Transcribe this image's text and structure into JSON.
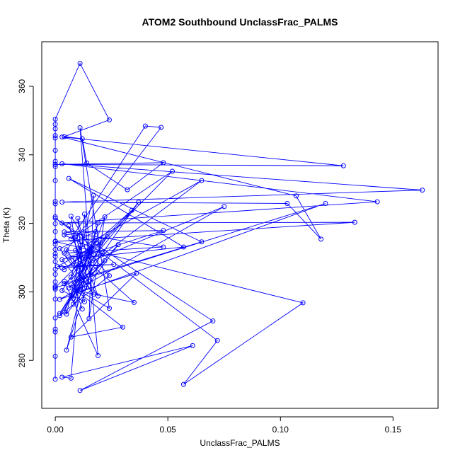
{
  "chart_data": {
    "type": "line",
    "title": "ATOM2 Southbound UnclassFrac_PALMS",
    "xlabel": "UnclassFrac_PALMS",
    "ylabel": "Theta (K)",
    "xlim": [
      -0.006,
      0.17
    ],
    "ylim": [
      266,
      373
    ],
    "xticks": [
      0,
      0.05,
      0.1,
      0.15
    ],
    "xtick_labels": [
      "0.00",
      "0.05",
      "0.10",
      "0.15"
    ],
    "yticks": [
      280,
      300,
      320,
      340,
      360
    ],
    "ytick_labels": [
      "280",
      "300",
      "320",
      "340",
      "360"
    ],
    "grid": false,
    "series_color": "#0000ff",
    "series": [
      {
        "values": [
          [
            0.0,
            274.5
          ],
          [
            0.0,
            281.2
          ],
          [
            0.0,
            288.3
          ],
          [
            0.0,
            289.1
          ],
          [
            0.0,
            292.4
          ],
          [
            0.0,
            297.9
          ],
          [
            0.0,
            300.8
          ],
          [
            0.0,
            301.6
          ],
          [
            0.0,
            302.9
          ],
          [
            0.0,
            305.1
          ],
          [
            0.0,
            306.6
          ],
          [
            0.0,
            308.8
          ],
          [
            0.0,
            310.3
          ],
          [
            0.0,
            311.1
          ],
          [
            0.0,
            312.4
          ],
          [
            0.0,
            313.9
          ],
          [
            0.0,
            314.8
          ],
          [
            0.0,
            317.6
          ],
          [
            0.0,
            319.9
          ],
          [
            0.0,
            321.9
          ],
          [
            0.0,
            325.7
          ],
          [
            0.0,
            326.4
          ],
          [
            0.0,
            332.5
          ],
          [
            0.0,
            336.6
          ],
          [
            0.0,
            337.2
          ],
          [
            0.0,
            338.1
          ],
          [
            0.0,
            341.3
          ],
          [
            0.0,
            344.9
          ],
          [
            0.0,
            345.6
          ],
          [
            0.0,
            347.6
          ],
          [
            0.0,
            348.9
          ],
          [
            0.0,
            350.4
          ],
          [
            0.011,
            366.7
          ],
          [
            0.024,
            350.2
          ],
          [
            0.004,
            345.3
          ],
          [
            0.012,
            344.7
          ],
          [
            0.014,
            337.6
          ],
          [
            0.032,
            329.8
          ],
          [
            0.048,
            337.7
          ],
          [
            0.0,
            337.2
          ],
          [
            0.128,
            336.8
          ],
          [
            0.003,
            345.2
          ],
          [
            0.107,
            328.0
          ],
          [
            0.118,
            315.4
          ],
          [
            0.103,
            325.8
          ],
          [
            0.003,
            326.2
          ],
          [
            0.163,
            329.7
          ],
          [
            0.003,
            337.4
          ],
          [
            0.143,
            326.3
          ],
          [
            0.003,
            320.1
          ],
          [
            0.133,
            320.3
          ],
          [
            0.0,
            314.7
          ],
          [
            0.11,
            296.8
          ],
          [
            0.057,
            273.0
          ],
          [
            0.072,
            285.8
          ],
          [
            0.0,
            321.5
          ],
          [
            0.07,
            291.5
          ],
          [
            0.011,
            271.2
          ],
          [
            0.061,
            284.3
          ],
          [
            0.003,
            275.1
          ],
          [
            0.007,
            274.8
          ],
          [
            0.013,
            322.7
          ],
          [
            0.019,
            281.4
          ],
          [
            0.004,
            303.1
          ],
          [
            0.03,
            289.7
          ],
          [
            0.007,
            286.8
          ],
          [
            0.036,
            305.4
          ],
          [
            0.011,
            300.2
          ],
          [
            0.035,
            296.9
          ],
          [
            0.009,
            312.1
          ],
          [
            0.065,
            332.5
          ],
          [
            0.004,
            302.4
          ],
          [
            0.065,
            314.6
          ],
          [
            0.006,
            333.1
          ],
          [
            0.057,
            313.1
          ],
          [
            0.009,
            309.7
          ],
          [
            0.048,
            317.9
          ],
          [
            0.004,
            317.5
          ],
          [
            0.048,
            313.1
          ],
          [
            0.004,
            311.3
          ],
          [
            0.047,
            348.0
          ],
          [
            0.04,
            348.4
          ],
          [
            0.007,
            315.4
          ],
          [
            0.052,
            335.2
          ],
          [
            0.01,
            307.3
          ],
          [
            0.075,
            324.9
          ],
          [
            0.002,
            297.8
          ],
          [
            0.12,
            325.8
          ],
          [
            0.0,
            301.2
          ],
          [
            0.034,
            323.8
          ],
          [
            0.004,
            306.5
          ],
          [
            0.023,
            316.1
          ],
          [
            0.002,
            293.7
          ],
          [
            0.037,
            326.2
          ],
          [
            0.006,
            301.1
          ],
          [
            0.022,
            309.1
          ],
          [
            0.01,
            300.6
          ],
          [
            0.024,
            295.2
          ],
          [
            0.011,
            347.9
          ],
          [
            0.016,
            305.1
          ],
          [
            0.028,
            313.8
          ],
          [
            0.005,
            293.5
          ],
          [
            0.017,
            328.2
          ],
          [
            0.015,
            292.2
          ],
          [
            0.022,
            321.9
          ],
          [
            0.008,
            296.4
          ],
          [
            0.019,
            320.1
          ],
          [
            0.005,
            283.0
          ],
          [
            0.02,
            314.3
          ],
          [
            0.001,
            307.4
          ],
          [
            0.026,
            308.0
          ],
          [
            0.003,
            307.0
          ],
          [
            0.021,
            311.3
          ],
          [
            0.002,
            293.1
          ],
          [
            0.024,
            304.7
          ],
          [
            0.009,
            316.0
          ],
          [
            0.019,
            298.8
          ],
          [
            0.005,
            312.3
          ],
          [
            0.017,
            311.0
          ],
          [
            0.007,
            322.1
          ],
          [
            0.013,
            297.1
          ],
          [
            0.003,
            300.4
          ],
          [
            0.018,
            315.1
          ],
          [
            0.004,
            294.1
          ],
          [
            0.012,
            308.0
          ],
          [
            0.006,
            319.3
          ],
          [
            0.015,
            303.0
          ],
          [
            0.007,
            298.7
          ],
          [
            0.016,
            312.9
          ],
          [
            0.004,
            316.6
          ],
          [
            0.018,
            317.6
          ],
          [
            0.002,
            312.6
          ],
          [
            0.017,
            299.3
          ],
          [
            0.006,
            310.2
          ],
          [
            0.014,
            310.6
          ],
          [
            0.01,
            321.5
          ],
          [
            0.013,
            301.1
          ],
          [
            0.003,
            309.4
          ],
          [
            0.015,
            312.3
          ],
          [
            0.008,
            298.0
          ],
          [
            0.011,
            313.5
          ],
          [
            0.007,
            304.3
          ],
          [
            0.012,
            295.0
          ]
        ]
      }
    ]
  }
}
